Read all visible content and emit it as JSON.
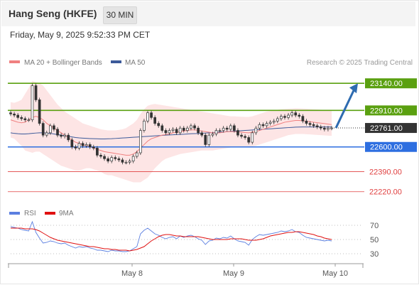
{
  "header": {
    "title": "Hang Seng (HKFE)",
    "timeframe": "30 MIN",
    "datetime": "Friday, May 9, 2025 9:52:33 PM CET"
  },
  "legend": {
    "ma20": "MA 20 + Bollinger Bands",
    "ma50": "MA 50",
    "credit": "Research © 2025 Trading Central",
    "rsi": "RSI",
    "ma9": "9MA"
  },
  "colors": {
    "resistance": "#5aa010",
    "support": "#2d6ee0",
    "minor": "#e04040",
    "current": "#333333",
    "arrow": "#2e6bb0",
    "ma20": "#f08080",
    "ma50": "#3c5a9a",
    "bollinger": "#fcdcdc",
    "rsi": "#5b7fe0",
    "rsi_ma": "#e01010"
  },
  "chart_data": [
    {
      "type": "candlestick",
      "title": "Hang Seng (HKFE)",
      "x_ticks": [
        "May 8",
        "May 9",
        "May 10"
      ],
      "ylim": [
        22140,
        23250
      ],
      "levels": [
        {
          "label": "23140.00",
          "value": 23140,
          "kind": "resistance"
        },
        {
          "label": "22910.00",
          "value": 22910,
          "kind": "resistance"
        },
        {
          "label": "22761.00",
          "value": 22761,
          "kind": "current"
        },
        {
          "label": "22600.00",
          "value": 22600,
          "kind": "support"
        },
        {
          "label": "22390.00",
          "value": 22390,
          "kind": "minor"
        },
        {
          "label": "22220.00",
          "value": 22220,
          "kind": "minor"
        }
      ],
      "projection": {
        "from": 22761,
        "to": 23140
      },
      "closes": [
        22880,
        22870,
        22850,
        22840,
        22830,
        22830,
        23120,
        23000,
        22800,
        22700,
        22720,
        22780,
        22750,
        22700,
        22690,
        22700,
        22660,
        22600,
        22590,
        22630,
        22610,
        22620,
        22600,
        22590,
        22530,
        22520,
        22500,
        22480,
        22510,
        22500,
        22490,
        22470,
        22470,
        22480,
        22520,
        22550,
        22740,
        22820,
        22890,
        22850,
        22800,
        22780,
        22740,
        22720,
        22740,
        22750,
        22720,
        22760,
        22740,
        22760,
        22780,
        22760,
        22720,
        22700,
        22620,
        22700,
        22710,
        22740,
        22740,
        22760,
        22750,
        22780,
        22740,
        22700,
        22690,
        22680,
        22640,
        22720,
        22760,
        22790,
        22780,
        22800,
        22810,
        22820,
        22840,
        22860,
        22850,
        22870,
        22890,
        22870,
        22860,
        22820,
        22800,
        22790,
        22780,
        22770,
        22760,
        22750,
        22760,
        22761
      ],
      "ma20": [
        22830,
        22820,
        22810,
        22805,
        22810,
        22830,
        22850,
        22860,
        22850,
        22830,
        22800,
        22780,
        22760,
        22740,
        22720,
        22700,
        22680,
        22660,
        22640,
        22630,
        22620,
        22610,
        22600,
        22590,
        22580,
        22570,
        22560,
        22555,
        22550,
        22545,
        22540,
        22535,
        22530,
        22530,
        22540,
        22560,
        22590,
        22620,
        22650,
        22670,
        22680,
        22690,
        22700,
        22705,
        22710,
        22720,
        22725,
        22730,
        22735,
        22740,
        22745,
        22745,
        22740,
        22735,
        22730,
        22725,
        22720,
        22720,
        22720,
        22725,
        22730,
        22730,
        22730,
        22728,
        22725,
        22722,
        22720,
        22725,
        22730,
        22740,
        22750,
        22760,
        22770,
        22780,
        22790,
        22800,
        22810,
        22815,
        22820,
        22825,
        22825,
        22822,
        22818,
        22814,
        22810,
        22806,
        22802,
        22798,
        22794,
        22790
      ],
      "ma50": [
        22720,
        22715,
        22712,
        22710,
        22710,
        22712,
        22715,
        22718,
        22720,
        22720,
        22718,
        22715,
        22710,
        22705,
        22700,
        22695,
        22690,
        22685,
        22680,
        22677,
        22675,
        22673,
        22671,
        22670,
        22669,
        22668,
        22668,
        22669,
        22670,
        22672,
        22674,
        22676,
        22678,
        22680,
        22682,
        22684,
        22686,
        22688,
        22690,
        22692,
        22694,
        22696,
        22698,
        22700,
        22702,
        22703,
        22705,
        22706,
        22708,
        22710,
        22712,
        22713,
        22714,
        22716,
        22718,
        22720,
        22722,
        22724,
        22726,
        22728,
        22730,
        22732,
        22734,
        22736,
        22738,
        22740,
        22742,
        22744,
        22746,
        22748,
        22750,
        22752,
        22754,
        22756,
        22758,
        22760,
        22762,
        22764,
        22766,
        22768,
        22769,
        22770,
        22770,
        22770,
        22770,
        22770,
        22770,
        22770,
        22770,
        22770
      ],
      "boll_upper": [
        22980,
        22975,
        22985,
        23000,
        23050,
        23100,
        23160,
        23150,
        23140,
        23120,
        23080,
        23040,
        23000,
        22960,
        22930,
        22900,
        22880,
        22860,
        22840,
        22820,
        22800,
        22790,
        22780,
        22770,
        22760,
        22750,
        22745,
        22740,
        22740,
        22740,
        22745,
        22750,
        22760,
        22780,
        22800,
        22830,
        22880,
        22920,
        22950,
        22960,
        22965,
        22960,
        22955,
        22950,
        22945,
        22940,
        22935,
        22930,
        22925,
        22920,
        22915,
        22910,
        22905,
        22900,
        22895,
        22890,
        22885,
        22880,
        22875,
        22870,
        22865,
        22860,
        22860,
        22858,
        22856,
        22855,
        22855,
        22860,
        22870,
        22880,
        22890,
        22900,
        22905,
        22910,
        22915,
        22920,
        22922,
        22924,
        22926,
        22928,
        22927,
        22926,
        22924,
        22922,
        22920,
        22918,
        22916,
        22914,
        22912,
        22910
      ],
      "boll_lower": [
        22680,
        22670,
        22640,
        22610,
        22570,
        22560,
        22550,
        22560,
        22560,
        22540,
        22520,
        22500,
        22480,
        22460,
        22440,
        22430,
        22420,
        22410,
        22400,
        22400,
        22410,
        22420,
        22420,
        22410,
        22400,
        22390,
        22370,
        22360,
        22360,
        22350,
        22340,
        22330,
        22320,
        22310,
        22300,
        22300,
        22300,
        22320,
        22340,
        22380,
        22420,
        22450,
        22480,
        22500,
        22510,
        22520,
        22530,
        22540,
        22545,
        22550,
        22555,
        22560,
        22565,
        22570,
        22570,
        22570,
        22570,
        22575,
        22580,
        22585,
        22590,
        22595,
        22600,
        22600,
        22600,
        22600,
        22600,
        22605,
        22610,
        22620,
        22630,
        22640,
        22650,
        22660,
        22670,
        22680,
        22690,
        22700,
        22705,
        22710,
        22710,
        22710,
        22708,
        22706,
        22704,
        22702,
        22700,
        22698,
        22696,
        22694
      ]
    },
    {
      "type": "line",
      "title": "RSI",
      "y_ticks": [
        70,
        50,
        30
      ],
      "ylim": [
        20,
        80
      ],
      "rsi": [
        68,
        67,
        66,
        64,
        63,
        62,
        75,
        60,
        52,
        45,
        46,
        48,
        47,
        45,
        44,
        45,
        42,
        40,
        38,
        40,
        39,
        40,
        38,
        37,
        35,
        35,
        34,
        33,
        35,
        34,
        34,
        33,
        33,
        34,
        37,
        40,
        58,
        63,
        66,
        62,
        58,
        56,
        53,
        51,
        53,
        54,
        51,
        55,
        53,
        55,
        56,
        54,
        51,
        49,
        43,
        48,
        49,
        52,
        51,
        53,
        52,
        55,
        51,
        48,
        47,
        46,
        42,
        50,
        54,
        57,
        56,
        57,
        58,
        59,
        60,
        62,
        61,
        62,
        64,
        61,
        60,
        56,
        53,
        52,
        51,
        50,
        49,
        48,
        49,
        48
      ],
      "rsi_ma": [
        66,
        66,
        66,
        66,
        65,
        65,
        65,
        64,
        62,
        59,
        56,
        53,
        51,
        49,
        48,
        47,
        46,
        45,
        44,
        43,
        42,
        41,
        40,
        40,
        39,
        38,
        37,
        37,
        36,
        36,
        35,
        35,
        35,
        34,
        35,
        36,
        38,
        40,
        44,
        48,
        51,
        54,
        56,
        57,
        57,
        56,
        55,
        55,
        54,
        54,
        54,
        54,
        54,
        53,
        52,
        51,
        50,
        50,
        50,
        50,
        50,
        51,
        51,
        51,
        51,
        50,
        49,
        49,
        49,
        50,
        51,
        53,
        55,
        56,
        57,
        58,
        59,
        60,
        60,
        61,
        61,
        60,
        59,
        58,
        57,
        55,
        54,
        52,
        51,
        50
      ]
    }
  ]
}
